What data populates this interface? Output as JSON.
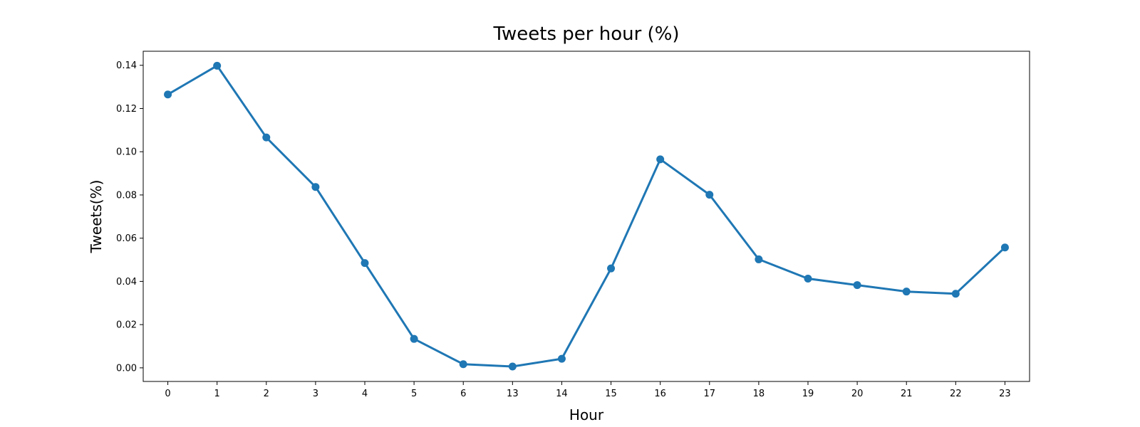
{
  "chart_data": {
    "type": "line",
    "title": "Tweets per hour (%)",
    "xlabel": "Hour",
    "ylabel": "Tweets(%)",
    "categories": [
      "0",
      "1",
      "2",
      "3",
      "4",
      "5",
      "6",
      "13",
      "14",
      "15",
      "16",
      "17",
      "18",
      "19",
      "20",
      "21",
      "22",
      "23"
    ],
    "series": [
      {
        "values": [
          0.1265,
          0.1398,
          0.1066,
          0.0837,
          0.0485,
          0.0134,
          0.0017,
          0.0006,
          0.0042,
          0.046,
          0.0965,
          0.0801,
          0.0502,
          0.0413,
          0.0383,
          0.0353,
          0.0343,
          0.0557
        ]
      }
    ],
    "yticks": [
      "0.00",
      "0.02",
      "0.04",
      "0.06",
      "0.08",
      "0.10",
      "0.12",
      "0.14"
    ],
    "ylim": [
      -0.0063,
      0.1465
    ],
    "grid": false,
    "legend": "none",
    "colors": {
      "line": "#1f77b4"
    }
  }
}
